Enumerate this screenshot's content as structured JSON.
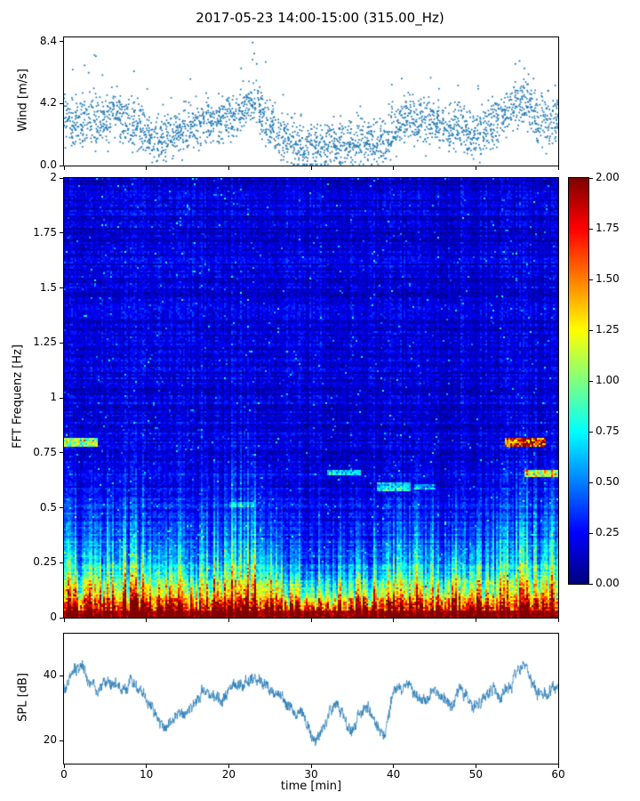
{
  "figure_title": "2017-05-23 14:00-15:00 (315.00_Hz)",
  "chart_data": [
    {
      "type": "scatter",
      "ylabel": "Wind [m/s]",
      "xlim": [
        0,
        60
      ],
      "ylim": [
        0,
        8.7
      ],
      "yticks": [
        0,
        4.2,
        8.4
      ],
      "ytick_labels": [
        "0.0",
        "4.2",
        "8.4"
      ],
      "marker_color": "#1f77b4",
      "samples_per_minute": 42,
      "scatter_sigma_ms": 0.8,
      "mean_by_minute": [
        3.2,
        2.8,
        3.0,
        3.3,
        3.0,
        3.2,
        3.5,
        3.2,
        2.8,
        2.6,
        2.2,
        1.8,
        1.6,
        2.0,
        2.4,
        2.6,
        2.8,
        3.0,
        3.2,
        3.0,
        3.2,
        3.5,
        4.0,
        4.2,
        3.5,
        2.8,
        2.2,
        1.8,
        1.6,
        1.5,
        1.4,
        1.3,
        1.4,
        1.5,
        1.4,
        1.5,
        1.6,
        1.8,
        1.7,
        1.8,
        2.2,
        2.8,
        3.2,
        3.0,
        2.8,
        3.0,
        2.6,
        2.4,
        2.8,
        2.4,
        2.0,
        2.4,
        2.8,
        3.0,
        3.5,
        4.5,
        4.0,
        3.5,
        2.8,
        3.2,
        3.0
      ],
      "outliers": [
        [
          2.5,
          6.8
        ],
        [
          3.0,
          6.3
        ],
        [
          8.5,
          6.4
        ],
        [
          21.5,
          6.6
        ],
        [
          22.9,
          8.35
        ],
        [
          23.1,
          7.6
        ],
        [
          23.4,
          6.9
        ],
        [
          41.0,
          5.9
        ],
        [
          54.8,
          6.9
        ],
        [
          55.3,
          7.1
        ],
        [
          55.9,
          6.6
        ],
        [
          56.4,
          6.2
        ],
        [
          57.0,
          5.9
        ]
      ]
    },
    {
      "type": "heatmap",
      "ylabel": "FFT Frequenz [Hz]",
      "xlim": [
        0,
        60
      ],
      "ylim": [
        0,
        2
      ],
      "yticks": [
        0,
        0.25,
        0.5,
        0.75,
        1,
        1.25,
        1.5,
        1.75,
        2
      ],
      "ytick_labels": [
        "0",
        "0.25",
        "0.5",
        "0.75",
        "1",
        "1.25",
        "1.5",
        "1.75",
        "2"
      ],
      "colormap": "jet",
      "vmin": 0,
      "vmax": 2,
      "background_level": 0.18,
      "low_freq_band": {
        "note": "broadband energy below ~0.3 Hz; saturated dark red below ~0.03 Hz across all times; plume height scales with wind speed",
        "max_level": 2.0
      },
      "features": [
        {
          "t": [
            0,
            4
          ],
          "f": [
            0.78,
            0.815
          ],
          "level": 0.85,
          "note": "narrowband tone near 0.8 Hz at start"
        },
        {
          "t": [
            53.5,
            58.5
          ],
          "f": [
            0.78,
            0.82
          ],
          "level": 1.5,
          "note": "strong narrowband tone near 0.8 Hz"
        },
        {
          "t": [
            56,
            60
          ],
          "f": [
            0.64,
            0.675
          ],
          "level": 0.9,
          "note": "tone near 0.65 Hz at end"
        },
        {
          "t": [
            32,
            36
          ],
          "f": [
            0.645,
            0.67
          ],
          "level": 0.45,
          "note": "faint tone near 0.65 Hz"
        },
        {
          "t": [
            38,
            42
          ],
          "f": [
            0.575,
            0.615
          ],
          "level": 0.5,
          "note": "cyan patch near 0.6 Hz"
        },
        {
          "t": [
            42.5,
            45
          ],
          "f": [
            0.585,
            0.61
          ],
          "level": 0.35,
          "note": "faint patch near 0.6 Hz"
        },
        {
          "t": [
            20,
            23
          ],
          "f": [
            0.5,
            0.53
          ],
          "level": 0.25,
          "note": "very faint patch near 0.5 Hz"
        }
      ]
    },
    {
      "type": "line",
      "ylabel": "SPL [dB]",
      "xlabel": "time [min]",
      "xlim": [
        0,
        60
      ],
      "ylim": [
        13,
        53
      ],
      "yticks": [
        20,
        40
      ],
      "ytick_labels": [
        "20",
        "40"
      ],
      "xticks": [
        0,
        10,
        20,
        30,
        40,
        50,
        60
      ],
      "xtick_labels": [
        "0",
        "10",
        "20",
        "30",
        "40",
        "50",
        "60"
      ],
      "line_color": "#1f77b4",
      "noise_band_db": 3,
      "mean_by_minute": [
        37,
        40,
        43,
        38,
        36,
        38,
        37,
        36,
        38,
        36,
        33,
        28,
        24,
        26,
        30,
        28,
        32,
        35,
        34,
        33,
        36,
        37,
        38,
        39,
        37,
        36,
        34,
        31,
        29,
        27,
        22,
        21,
        26,
        32,
        28,
        23,
        29,
        30,
        25,
        22,
        35,
        37,
        36,
        34,
        33,
        36,
        33,
        31,
        35,
        33,
        30,
        33,
        36,
        34,
        37,
        42,
        44,
        38,
        34,
        36,
        35
      ]
    }
  ],
  "colorbar": {
    "colormap": "jet",
    "vmin": 0,
    "vmax": 2,
    "ticks": [
      2,
      1.75,
      1.5,
      1.25,
      1,
      0.75,
      0.5,
      0.25,
      0
    ],
    "tick_labels": [
      "2.00",
      "1.75",
      "1.50",
      "1.25",
      "1.00",
      "0.75",
      "0.50",
      "0.25",
      "0.00"
    ]
  }
}
